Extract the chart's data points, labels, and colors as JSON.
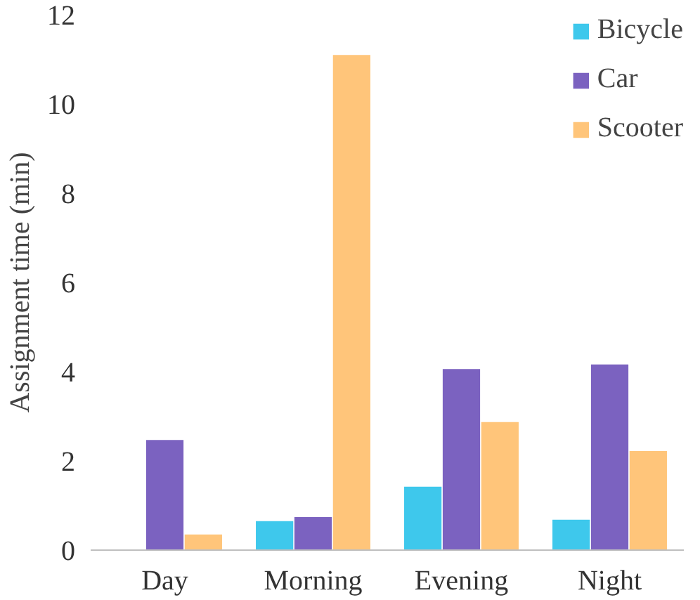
{
  "chart_data": {
    "type": "bar",
    "ylabel": "Assignment time (min)",
    "categories": [
      "Day",
      "Morning",
      "Evening",
      "Night"
    ],
    "series": [
      {
        "name": "Bicycle",
        "color": "#3ec8ec",
        "values": [
          null,
          0.65,
          1.42,
          0.68
        ]
      },
      {
        "name": "Car",
        "color": "#7b62c0",
        "values": [
          2.47,
          0.74,
          4.06,
          4.16
        ]
      },
      {
        "name": "Scooter",
        "color": "#ffc57a",
        "values": [
          0.35,
          11.1,
          2.87,
          2.22
        ]
      }
    ],
    "ylim": [
      0,
      12
    ],
    "yticks": [
      0,
      2,
      4,
      6,
      8,
      10,
      12
    ],
    "grid": false,
    "legend": "top right"
  }
}
